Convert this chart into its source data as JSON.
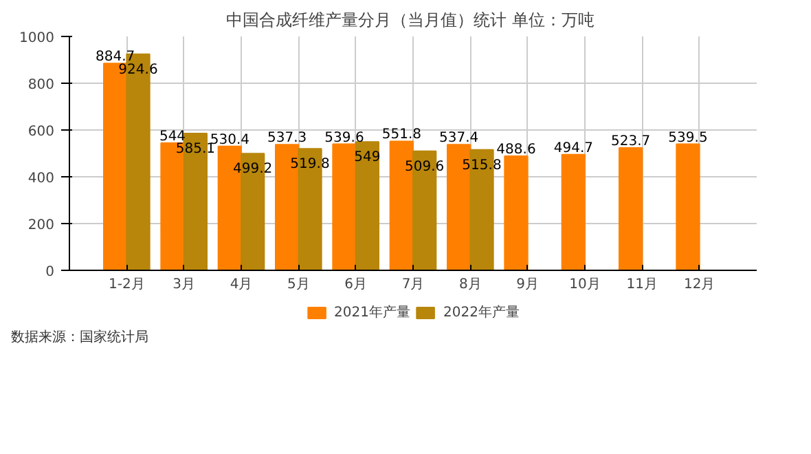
{
  "chart_data": {
    "type": "bar",
    "title": "中国合成纤维产量分月（当月值）统计  单位：万吨",
    "categories": [
      "1-2月",
      "3月",
      "4月",
      "5月",
      "6月",
      "7月",
      "8月",
      "9月",
      "10月",
      "11月",
      "12月"
    ],
    "series": [
      {
        "name": "2021年产量",
        "color": "#ff8000",
        "values": [
          884.7,
          544,
          530.4,
          537.3,
          539.6,
          551.8,
          537.4,
          488.6,
          494.7,
          523.7,
          539.5
        ]
      },
      {
        "name": "2022年产量",
        "color": "#b8860b",
        "values": [
          924.6,
          585.1,
          499.2,
          519.8,
          549,
          509.6,
          515.8,
          null,
          null,
          null,
          null
        ]
      }
    ],
    "ylim": [
      0,
      1000
    ],
    "yticks": [
      0,
      200,
      400,
      600,
      800,
      1000
    ],
    "grid": true,
    "legend": "bottom",
    "data_labels": true,
    "annotations": [
      "数据来源：国家统计局"
    ]
  }
}
